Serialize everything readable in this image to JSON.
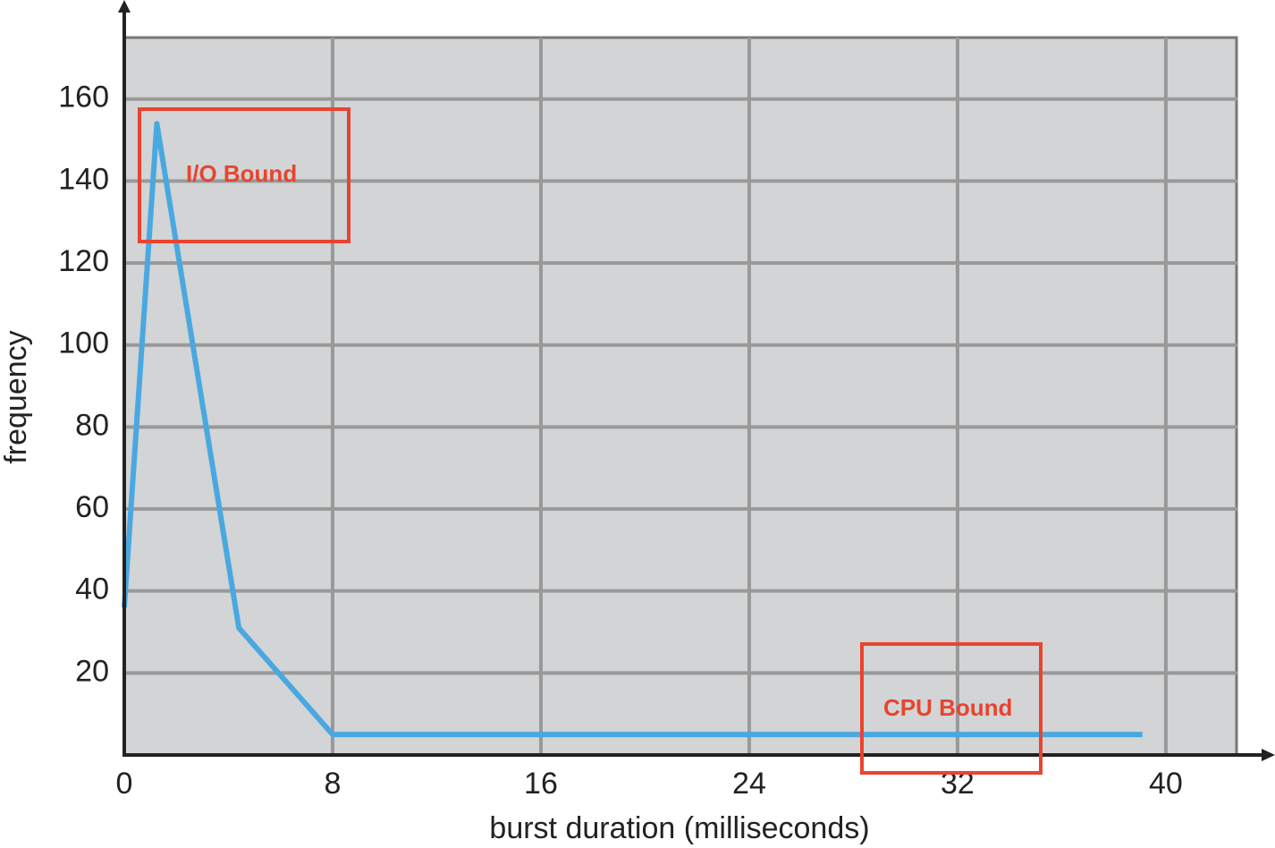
{
  "chart_data": {
    "type": "line",
    "x_label": "burst duration (milliseconds)",
    "y_label": "frequency",
    "x": [
      0,
      1.25,
      4.4,
      8,
      39.1
    ],
    "values": [
      36,
      154,
      31,
      5,
      5
    ],
    "color": "#4aa8e0",
    "xlim": [
      0,
      42.75
    ],
    "ylim": [
      0,
      175
    ],
    "xticks": [
      0,
      8,
      16,
      24,
      32,
      40
    ],
    "yticks": [
      20,
      40,
      60,
      80,
      100,
      120,
      140,
      160
    ],
    "grid": true,
    "annotations": [
      "I/O Bound",
      "CPU Bound"
    ]
  }
}
